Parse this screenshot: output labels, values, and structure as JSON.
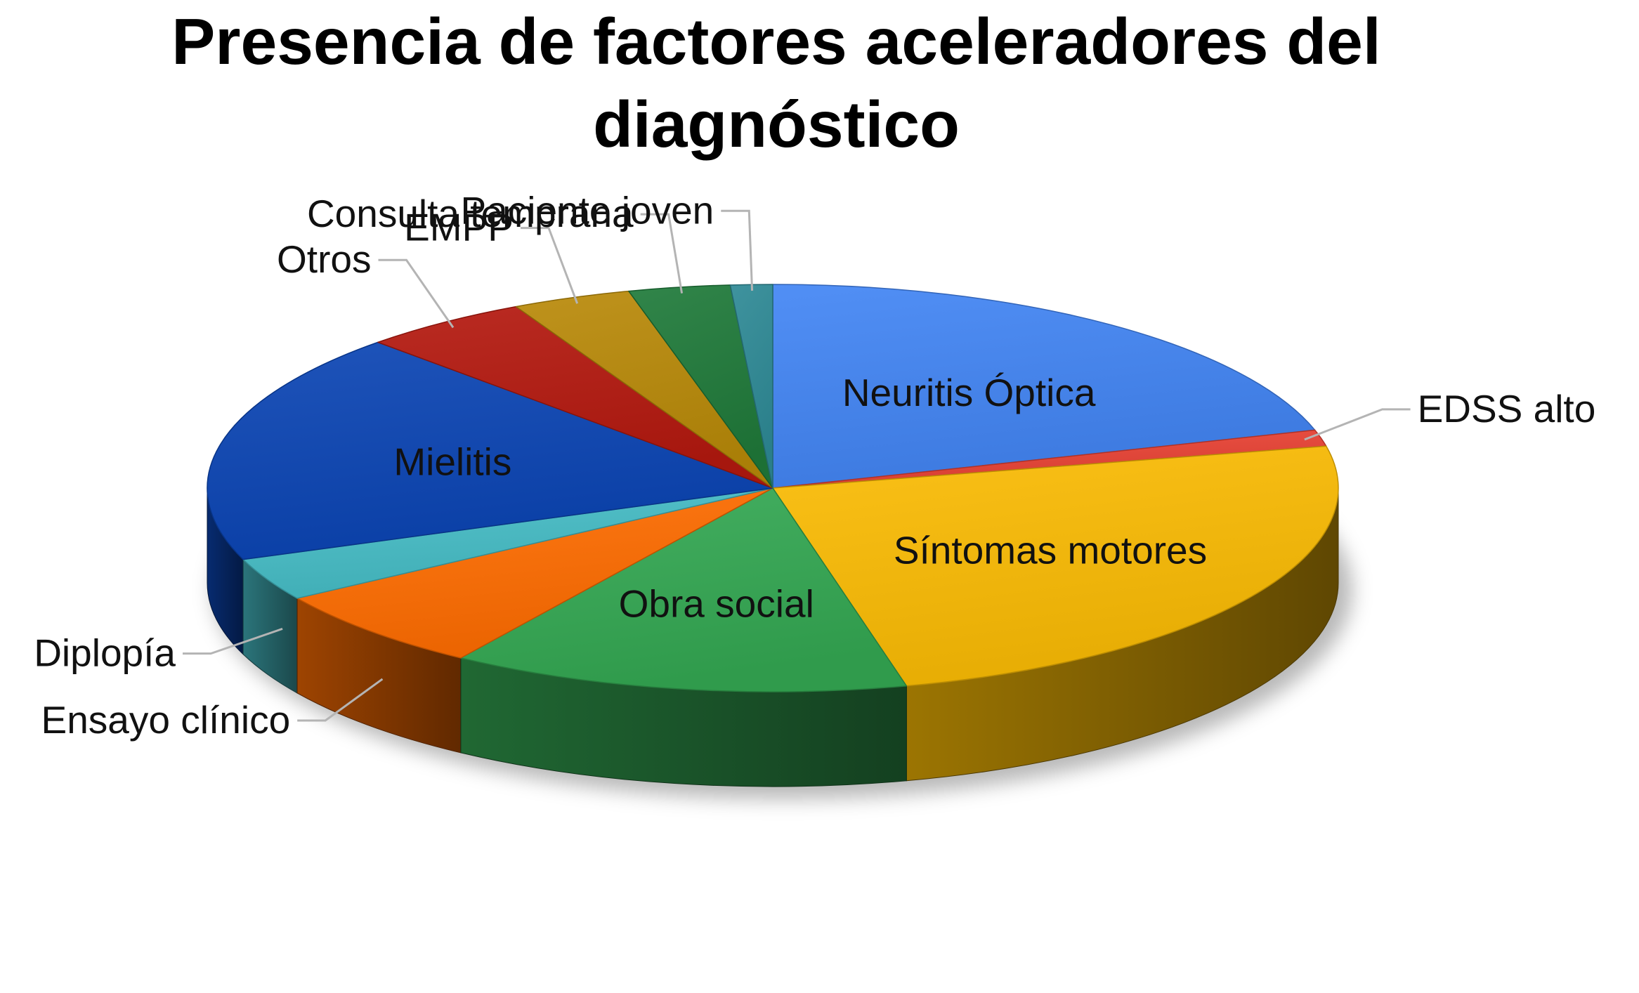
{
  "chart_data": {
    "type": "pie",
    "style": "3d-exploded-none",
    "title": "Presencia de factores aceleradores del diagnóstico",
    "legend": "none",
    "slices": [
      {
        "label": "Neuritis Óptica",
        "value": 20.4,
        "color": "#4285f4",
        "label_position": "inside"
      },
      {
        "label": "EDSS alto",
        "value": 1.3,
        "color": "#ea4335",
        "label_position": "outside"
      },
      {
        "label": "Síntomas motores",
        "value": 24.5,
        "color": "#fbbc04",
        "label_position": "inside"
      },
      {
        "label": "Obra social",
        "value": 13.1,
        "color": "#34a853",
        "label_position": "inside"
      },
      {
        "label": "Ensayo clínico",
        "value": 6.6,
        "color": "#ff6d01",
        "label_position": "outside"
      },
      {
        "label": "Diplopía",
        "value": 3.4,
        "color": "#46bdc6",
        "label_position": "outside"
      },
      {
        "label": "Mielitis",
        "value": 18.4,
        "color": "#0b45b4",
        "label_position": "inside"
      },
      {
        "label": "Otros",
        "value": 4.8,
        "color": "#b4190f",
        "label_position": "outside"
      },
      {
        "label": "EMPP",
        "value": 3.4,
        "color": "#b98a09",
        "label_position": "outside"
      },
      {
        "label": "Consulta temprana",
        "value": 2.9,
        "color": "#1f7a3a",
        "label_position": "outside"
      },
      {
        "label": "Paciente joven",
        "value": 1.2,
        "color": "#2e8a96",
        "label_position": "outside"
      }
    ]
  }
}
